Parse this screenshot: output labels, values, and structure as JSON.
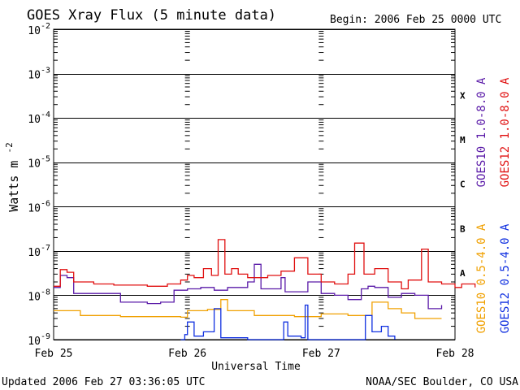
{
  "chart_data": {
    "type": "line",
    "title": "GOES Xray Flux (5 minute data)",
    "begin_label": "Begin:  2006 Feb 25 0000 UTC",
    "xlabel": "Universal Time",
    "ylabel_base": "Watts m",
    "ylabel_exp": "-2",
    "y_scale": "log",
    "ylim": [
      1e-09,
      0.01
    ],
    "xlim": [
      "2006-02-25",
      "2006-02-28"
    ],
    "x_ticks": [
      "Feb 25",
      "Feb 26",
      "Feb 27",
      "Feb 28"
    ],
    "y_ticks": [
      {
        "value": 0.01,
        "base": "10",
        "exp": "-2"
      },
      {
        "value": 0.001,
        "base": "10",
        "exp": "-3"
      },
      {
        "value": 0.0001,
        "base": "10",
        "exp": "-4"
      },
      {
        "value": 1e-05,
        "base": "10",
        "exp": "-5"
      },
      {
        "value": 1e-06,
        "base": "10",
        "exp": "-6"
      },
      {
        "value": 1e-07,
        "base": "10",
        "exp": "-7"
      },
      {
        "value": 1e-08,
        "base": "10",
        "exp": "-8"
      },
      {
        "value": 1e-09,
        "base": "10",
        "exp": "-9"
      }
    ],
    "flare_classes": [
      {
        "label": "X",
        "value": 0.00032
      },
      {
        "label": "M",
        "value": 3.2e-05
      },
      {
        "label": "C",
        "value": 3.2e-06
      },
      {
        "label": "B",
        "value": 3.2e-07
      },
      {
        "label": "A",
        "value": 3.2e-08
      }
    ],
    "grid": true,
    "series": [
      {
        "name": "GOES10 1.0-8.0 A",
        "color": "#5a1aa8",
        "points": [
          [
            0.0,
            1.5e-08
          ],
          [
            0.05,
            2.8e-08
          ],
          [
            0.1,
            2.5e-08
          ],
          [
            0.15,
            1.1e-08
          ],
          [
            0.3,
            1.1e-08
          ],
          [
            0.45,
            1.1e-08
          ],
          [
            0.5,
            7e-09
          ],
          [
            0.7,
            6.5e-09
          ],
          [
            0.8,
            7e-09
          ],
          [
            0.9,
            1.3e-08
          ],
          [
            1.0,
            1.4e-08
          ],
          [
            1.1,
            1.5e-08
          ],
          [
            1.2,
            1.3e-08
          ],
          [
            1.3,
            1.5e-08
          ],
          [
            1.45,
            2e-08
          ],
          [
            1.5,
            5e-08
          ],
          [
            1.55,
            1.4e-08
          ],
          [
            1.7,
            2.5e-08
          ],
          [
            1.73,
            1.2e-08
          ],
          [
            1.8,
            1.2e-08
          ],
          [
            1.9,
            2e-08
          ],
          [
            2.0,
            1.1e-08
          ],
          [
            2.1,
            1e-08
          ],
          [
            2.2,
            8e-09
          ],
          [
            2.3,
            1.4e-08
          ],
          [
            2.35,
            1.6e-08
          ],
          [
            2.4,
            1.5e-08
          ],
          [
            2.5,
            9e-09
          ],
          [
            2.6,
            1.1e-08
          ],
          [
            2.7,
            1e-08
          ],
          [
            2.8,
            5e-09
          ],
          [
            2.9,
            6e-09
          ]
        ]
      },
      {
        "name": "GOES12 1.0-8.0 A",
        "color": "#e01010",
        "points": [
          [
            0.0,
            1.6e-08
          ],
          [
            0.05,
            3.8e-08
          ],
          [
            0.1,
            3.3e-08
          ],
          [
            0.15,
            2e-08
          ],
          [
            0.3,
            1.8e-08
          ],
          [
            0.45,
            1.7e-08
          ],
          [
            0.55,
            1.7e-08
          ],
          [
            0.7,
            1.6e-08
          ],
          [
            0.85,
            1.8e-08
          ],
          [
            0.95,
            2.2e-08
          ],
          [
            1.0,
            2.8e-08
          ],
          [
            1.05,
            2.5e-08
          ],
          [
            1.12,
            4e-08
          ],
          [
            1.18,
            2.8e-08
          ],
          [
            1.23,
            1.8e-07
          ],
          [
            1.28,
            3e-08
          ],
          [
            1.33,
            4e-08
          ],
          [
            1.38,
            3e-08
          ],
          [
            1.45,
            2.5e-08
          ],
          [
            1.6,
            2.8e-08
          ],
          [
            1.7,
            3.5e-08
          ],
          [
            1.8,
            7e-08
          ],
          [
            1.9,
            3e-08
          ],
          [
            2.0,
            2e-08
          ],
          [
            2.1,
            1.8e-08
          ],
          [
            2.2,
            3e-08
          ],
          [
            2.25,
            1.5e-07
          ],
          [
            2.32,
            3e-08
          ],
          [
            2.4,
            4e-08
          ],
          [
            2.5,
            2e-08
          ],
          [
            2.6,
            1.4e-08
          ],
          [
            2.65,
            2.2e-08
          ],
          [
            2.75,
            1.1e-07
          ],
          [
            2.8,
            2e-08
          ],
          [
            2.9,
            1.8e-08
          ],
          [
            3.0,
            1.5e-08
          ],
          [
            3.05,
            1.8e-08
          ],
          [
            3.15,
            1.5e-08
          ]
        ]
      },
      {
        "name": "GOES10 0.5-4.0 A",
        "color": "#f0a000",
        "points": [
          [
            0.0,
            4.5e-09
          ],
          [
            0.15,
            4.5e-09
          ],
          [
            0.2,
            3.5e-09
          ],
          [
            0.45,
            3.5e-09
          ],
          [
            0.5,
            3.3e-09
          ],
          [
            0.95,
            3.2e-09
          ],
          [
            1.0,
            4.5e-09
          ],
          [
            1.15,
            4.8e-09
          ],
          [
            1.25,
            8e-09
          ],
          [
            1.3,
            4.5e-09
          ],
          [
            1.4,
            4.5e-09
          ],
          [
            1.5,
            3.5e-09
          ],
          [
            1.8,
            3.3e-09
          ],
          [
            2.0,
            3.8e-09
          ],
          [
            2.2,
            3.5e-09
          ],
          [
            2.3,
            3.5e-09
          ],
          [
            2.38,
            7e-09
          ],
          [
            2.5,
            5e-09
          ],
          [
            2.6,
            4e-09
          ],
          [
            2.7,
            3e-09
          ],
          [
            2.8,
            3e-09
          ],
          [
            2.9,
            3e-09
          ]
        ]
      },
      {
        "name": "GOES12 0.5-4.0 A",
        "color": "#1030e0",
        "points": [
          [
            0.95,
            1e-09
          ],
          [
            0.98,
            1.3e-09
          ],
          [
            1.0,
            2.5e-09
          ],
          [
            1.05,
            1.2e-09
          ],
          [
            1.12,
            1.5e-09
          ],
          [
            1.2,
            5e-09
          ],
          [
            1.25,
            1.1e-09
          ],
          [
            1.45,
            1e-09
          ],
          [
            1.7,
            1e-09
          ],
          [
            1.72,
            2.5e-09
          ],
          [
            1.75,
            1.2e-09
          ],
          [
            1.85,
            1.1e-09
          ],
          [
            1.88,
            6e-09
          ],
          [
            1.9,
            1e-09
          ],
          [
            2.3,
            1e-09
          ],
          [
            2.33,
            3.5e-09
          ],
          [
            2.38,
            1.5e-09
          ],
          [
            2.45,
            2e-09
          ],
          [
            2.5,
            1.2e-09
          ],
          [
            2.55,
            1e-09
          ]
        ]
      }
    ]
  },
  "footer": {
    "updated": "Updated 2006 Feb 27 03:36:05 UTC",
    "source": "NOAA/SEC Boulder, CO USA"
  }
}
